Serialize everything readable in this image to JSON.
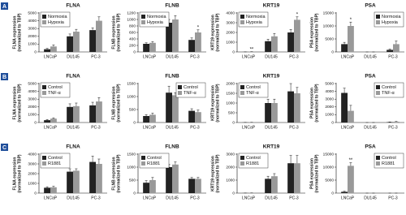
{
  "panel_labels": [
    "A",
    "B",
    "C"
  ],
  "chart_data": [
    {
      "type": "bar",
      "title": "FLNA",
      "ylabel": [
        "FLNA expression",
        "(normalized to TBP)"
      ],
      "categories": [
        "LNCaP",
        "DU145",
        "PC-3"
      ],
      "series": [
        {
          "name": "Normoxia",
          "color": "#222222",
          "values": [
            350,
            2000,
            2800
          ],
          "errors": [
            100,
            300,
            300
          ]
        },
        {
          "name": "Hypoxia",
          "color": "#999999",
          "values": [
            700,
            2600,
            4000
          ],
          "errors": [
            200,
            300,
            500
          ]
        }
      ],
      "ylim": [
        0,
        5000
      ],
      "yticks": [
        0,
        1000,
        2000,
        3000,
        4000,
        5000
      ],
      "legend": "top-left",
      "annotations": []
    },
    {
      "type": "bar",
      "title": "FLNB",
      "ylabel": [
        "FLNB expression",
        "(normalized to TBP)"
      ],
      "categories": [
        "LNCaP",
        "DU145",
        "PC-3"
      ],
      "series": [
        {
          "name": "Normoxia",
          "color": "#222222",
          "values": [
            250,
            900,
            370
          ],
          "errors": [
            30,
            100,
            60
          ]
        },
        {
          "name": "Hypoxia",
          "color": "#999999",
          "values": [
            280,
            1000,
            600
          ],
          "errors": [
            40,
            120,
            80
          ]
        }
      ],
      "ylim": [
        0,
        1200
      ],
      "yticks": [
        0,
        200,
        400,
        600,
        800,
        1000,
        1200
      ],
      "legend": "top-left",
      "annotations": [
        {
          "text": "*",
          "category": 2,
          "series": 1
        }
      ]
    },
    {
      "type": "bar",
      "title": "KRT19",
      "ylabel": [
        "KRT19 expression",
        "(normalized to TBP)"
      ],
      "categories": [
        "LNCaP",
        "DU145",
        "PC-3"
      ],
      "series": [
        {
          "name": "Normoxia",
          "color": "#222222",
          "values": [
            5,
            1100,
            2000
          ],
          "errors": [
            2,
            200,
            300
          ]
        },
        {
          "name": "Hypoxia",
          "color": "#999999",
          "values": [
            20,
            1600,
            3300
          ],
          "errors": [
            5,
            300,
            300
          ]
        }
      ],
      "ylim": [
        0,
        4000
      ],
      "yticks": [
        0,
        1000,
        2000,
        3000,
        4000
      ],
      "legend": "top-left",
      "annotations": [
        {
          "text": "**",
          "category": 0,
          "series": 1
        },
        {
          "text": "*",
          "category": 2,
          "series": 1
        }
      ]
    },
    {
      "type": "bar",
      "title": "PSA",
      "ylabel": [
        "PSA expression",
        "(normalized to TBP)"
      ],
      "categories": [
        "LNCaP",
        "DU145",
        "PC-3"
      ],
      "series": [
        {
          "name": "Normoxia",
          "color": "#222222",
          "values": [
            3000,
            0,
            800
          ],
          "errors": [
            700,
            0,
            300
          ]
        },
        {
          "name": "Hypoxia",
          "color": "#999999",
          "values": [
            10000,
            0,
            3000
          ],
          "errors": [
            1500,
            0,
            1200
          ]
        }
      ],
      "ylim": [
        0,
        15000
      ],
      "yticks": [
        0,
        5000,
        10000,
        15000
      ],
      "legend": "top-right",
      "annotations": [
        {
          "text": "*",
          "category": 0,
          "series": 1
        }
      ]
    },
    {
      "type": "bar",
      "title": "FLNA",
      "ylabel": [
        "FLNA expression",
        "(normalized to TBP)"
      ],
      "categories": [
        "LNCaP",
        "DU145",
        "PC-3"
      ],
      "series": [
        {
          "name": "Control",
          "color": "#222222",
          "values": [
            300,
            2000,
            2200
          ],
          "errors": [
            80,
            400,
            400
          ]
        },
        {
          "name": "TNF-α",
          "color": "#999999",
          "values": [
            500,
            2100,
            2700
          ],
          "errors": [
            100,
            400,
            500
          ]
        }
      ],
      "ylim": [
        0,
        5000
      ],
      "yticks": [
        0,
        1000,
        2000,
        3000,
        4000,
        5000
      ],
      "legend": "top-left",
      "annotations": []
    },
    {
      "type": "bar",
      "title": "FLNB",
      "ylabel": [
        "FLNB expression",
        "(normalized to TBP)"
      ],
      "categories": [
        "LNCaP",
        "DU145",
        "PC-3"
      ],
      "series": [
        {
          "name": "Control",
          "color": "#222222",
          "values": [
            250,
            1150,
            450
          ],
          "errors": [
            50,
            250,
            80
          ]
        },
        {
          "name": "TNF-α",
          "color": "#999999",
          "values": [
            300,
            1050,
            400
          ],
          "errors": [
            60,
            100,
            80
          ]
        }
      ],
      "ylim": [
        0,
        1500
      ],
      "yticks": [
        0,
        500,
        1000,
        1500
      ],
      "legend": "top-right",
      "annotations": []
    },
    {
      "type": "bar",
      "title": "KRT19",
      "ylabel": [
        "KRT19 expression",
        "(normalized to TBP)"
      ],
      "categories": [
        "LNCaP",
        "DU145",
        "PC-3"
      ],
      "series": [
        {
          "name": "Control",
          "color": "#222222",
          "values": [
            5,
            1000,
            1600
          ],
          "errors": [
            2,
            200,
            400
          ]
        },
        {
          "name": "TNF-α",
          "color": "#999999",
          "values": [
            8,
            1000,
            1500
          ],
          "errors": [
            3,
            200,
            300
          ]
        }
      ],
      "ylim": [
        0,
        2000
      ],
      "yticks": [
        0,
        500,
        1000,
        1500,
        2000
      ],
      "legend": "top-left",
      "annotations": []
    },
    {
      "type": "bar",
      "title": "PSA",
      "ylabel": [
        "PSA expression",
        "(normalized to TBP)"
      ],
      "categories": [
        "LNCaP",
        "DU145",
        "PC-3"
      ],
      "series": [
        {
          "name": "Control",
          "color": "#222222",
          "values": [
            3800,
            0,
            50
          ],
          "errors": [
            600,
            0,
            20
          ]
        },
        {
          "name": "TNF-α",
          "color": "#999999",
          "values": [
            1500,
            0,
            100
          ],
          "errors": [
            700,
            0,
            30
          ]
        }
      ],
      "ylim": [
        0,
        5000
      ],
      "yticks": [
        0,
        1000,
        2000,
        3000,
        4000,
        5000
      ],
      "legend": "top-right",
      "annotations": []
    },
    {
      "type": "bar",
      "title": "FLNA",
      "ylabel": [
        "FLNA expression",
        "(normalized to TBP)"
      ],
      "categories": [
        "LNCaP",
        "DU145",
        "PC-3"
      ],
      "series": [
        {
          "name": "Control",
          "color": "#222222",
          "values": [
            550,
            2200,
            3200
          ],
          "errors": [
            100,
            300,
            600
          ]
        },
        {
          "name": "R1881",
          "color": "#999999",
          "values": [
            600,
            2300,
            3000
          ],
          "errors": [
            100,
            200,
            500
          ]
        }
      ],
      "ylim": [
        0,
        4000
      ],
      "yticks": [
        0,
        1000,
        2000,
        3000,
        4000
      ],
      "legend": "top-left",
      "annotations": []
    },
    {
      "type": "bar",
      "title": "FLNB",
      "ylabel": [
        "FLNB expression",
        "(normalized to TBP)"
      ],
      "categories": [
        "LNCaP",
        "DU145",
        "PC-3"
      ],
      "series": [
        {
          "name": "Control",
          "color": "#222222",
          "values": [
            400,
            1000,
            550
          ],
          "errors": [
            80,
            100,
            50
          ]
        },
        {
          "name": "R1881",
          "color": "#999999",
          "values": [
            500,
            1100,
            550
          ],
          "errors": [
            100,
            100,
            50
          ]
        }
      ],
      "ylim": [
        0,
        1500
      ],
      "yticks": [
        0,
        500,
        1000,
        1500
      ],
      "legend": "top-left",
      "annotations": []
    },
    {
      "type": "bar",
      "title": "KRT19",
      "ylabel": [
        "KRT19 expression",
        "(normalized to TBP)"
      ],
      "categories": [
        "LNCaP",
        "DU145",
        "PC-3"
      ],
      "series": [
        {
          "name": "Control",
          "color": "#222222",
          "values": [
            5,
            1100,
            2300
          ],
          "errors": [
            2,
            200,
            600
          ]
        },
        {
          "name": "R1881",
          "color": "#999999",
          "values": [
            10,
            1300,
            2300
          ],
          "errors": [
            3,
            200,
            600
          ]
        }
      ],
      "ylim": [
        0,
        3000
      ],
      "yticks": [
        0,
        1000,
        2000,
        3000
      ],
      "legend": "top-left",
      "annotations": []
    },
    {
      "type": "bar",
      "title": "PSA",
      "ylabel": [
        "PSA expression",
        "(normalized to TBP)"
      ],
      "categories": [
        "LNCaP",
        "DU145",
        "PC-3"
      ],
      "series": [
        {
          "name": "Control",
          "color": "#222222",
          "values": [
            500,
            0,
            0
          ],
          "errors": [
            200,
            0,
            0
          ]
        },
        {
          "name": "R1881",
          "color": "#999999",
          "values": [
            10500,
            0,
            0
          ],
          "errors": [
            1200,
            0,
            0
          ]
        }
      ],
      "ylim": [
        0,
        15000
      ],
      "yticks": [
        0,
        5000,
        10000,
        15000
      ],
      "legend": "top-right",
      "annotations": [
        {
          "text": "**",
          "category": 0,
          "series": 1
        }
      ]
    }
  ]
}
